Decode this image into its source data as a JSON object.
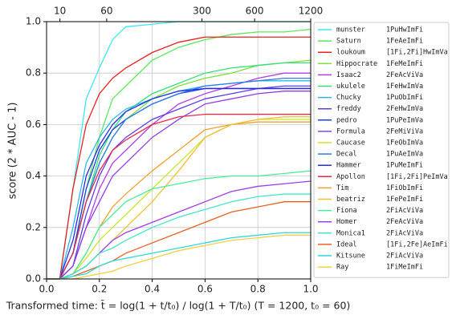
{
  "chart_data": {
    "type": "line",
    "xlabel": "Transformed time: t̃ = log(1 + t/t₀) / log(1 + T/t₀)   (T = 1200,  t₀ = 60)",
    "ylabel": "score (2 * AUC - 1)",
    "xlim": [
      0,
      1
    ],
    "ylim": [
      0,
      1
    ],
    "xticks": [
      {
        "value": 0,
        "label": "0.0"
      },
      {
        "value": 0.2,
        "label": "0.2"
      },
      {
        "value": 0.4,
        "label": "0.4"
      },
      {
        "value": 0.6,
        "label": "0.6"
      },
      {
        "value": 0.8,
        "label": "0.8"
      },
      {
        "value": 1,
        "label": "1.0"
      }
    ],
    "yticks": [
      {
        "value": 0,
        "label": "0.0"
      },
      {
        "value": 0.2,
        "label": "0.2"
      },
      {
        "value": 0.4,
        "label": "0.4"
      },
      {
        "value": 0.6,
        "label": "0.6"
      },
      {
        "value": 0.8,
        "label": "0.8"
      },
      {
        "value": 1,
        "label": "1.0"
      }
    ],
    "x2ticks": [
      {
        "value": 0.0506,
        "label": "10"
      },
      {
        "value": 0.2276,
        "label": "60"
      },
      {
        "value": 0.5884,
        "label": "300"
      },
      {
        "value": 0.7876,
        "label": "600"
      },
      {
        "value": 1,
        "label": "1200"
      }
    ],
    "grid": true,
    "x": [
      0,
      0.05,
      0.1,
      0.15,
      0.2,
      0.25,
      0.3,
      0.4,
      0.5,
      0.6,
      0.7,
      0.8,
      0.9,
      1.0
    ],
    "series": [
      {
        "name": "munster",
        "code": "1PuHwImFi",
        "color": "#3de8f0",
        "values": [
          0,
          0,
          0.35,
          0.7,
          0.82,
          0.93,
          0.98,
          0.99,
          1.0,
          1.0,
          1.0,
          1.0,
          1.0,
          1.0
        ]
      },
      {
        "name": "Saturn",
        "code": "1FeAeImFi",
        "color": "#5ce65c",
        "values": [
          0,
          0,
          0.1,
          0.35,
          0.55,
          0.7,
          0.75,
          0.85,
          0.9,
          0.93,
          0.95,
          0.96,
          0.96,
          0.97
        ]
      },
      {
        "name": "loukoum",
        "code": "[1Fi,2Fi]HwImVa",
        "color": "#e8211f",
        "values": [
          0,
          0,
          0.35,
          0.6,
          0.72,
          0.78,
          0.82,
          0.88,
          0.92,
          0.94,
          0.94,
          0.94,
          0.94,
          0.94
        ]
      },
      {
        "name": "Hippocrate",
        "code": "1FeMeImFi",
        "color": "#7ee03b",
        "values": [
          0,
          0,
          0.1,
          0.3,
          0.45,
          0.55,
          0.62,
          0.7,
          0.75,
          0.78,
          0.8,
          0.83,
          0.84,
          0.85
        ]
      },
      {
        "name": "Isaac2",
        "code": "2FeAcViVa",
        "color": "#b33ee6",
        "values": [
          0,
          0,
          0.05,
          0.2,
          0.35,
          0.45,
          0.5,
          0.6,
          0.68,
          0.72,
          0.75,
          0.78,
          0.8,
          0.8
        ]
      },
      {
        "name": "ukulele",
        "code": "1FeHwImVa",
        "color": "#34e07a",
        "values": [
          0,
          0,
          0.1,
          0.3,
          0.48,
          0.58,
          0.65,
          0.72,
          0.76,
          0.8,
          0.82,
          0.83,
          0.84,
          0.84
        ]
      },
      {
        "name": "Chucky",
        "code": "1PuObImFi",
        "color": "#2ab8e8",
        "values": [
          0,
          0,
          0.2,
          0.45,
          0.55,
          0.62,
          0.66,
          0.7,
          0.73,
          0.75,
          0.76,
          0.77,
          0.77,
          0.77
        ]
      },
      {
        "name": "freddy",
        "code": "2FeHwImVa",
        "color": "#5b3ee6",
        "values": [
          0,
          0,
          0.05,
          0.25,
          0.4,
          0.5,
          0.55,
          0.62,
          0.66,
          0.7,
          0.72,
          0.74,
          0.75,
          0.75
        ]
      },
      {
        "name": "pedro",
        "code": "1PuPeImVa",
        "color": "#1f3de8",
        "values": [
          0,
          0,
          0.1,
          0.35,
          0.5,
          0.58,
          0.62,
          0.68,
          0.72,
          0.74,
          0.74,
          0.74,
          0.74,
          0.74
        ]
      },
      {
        "name": "Formula",
        "code": "2FeMiViVa",
        "color": "#8f3ee6",
        "values": [
          0,
          0,
          0.05,
          0.2,
          0.3,
          0.4,
          0.45,
          0.55,
          0.62,
          0.68,
          0.7,
          0.72,
          0.73,
          0.73
        ]
      },
      {
        "name": "Caucase",
        "code": "1FeObImVa",
        "color": "#c8e62e",
        "values": [
          0,
          0,
          0.02,
          0.08,
          0.15,
          0.2,
          0.25,
          0.35,
          0.45,
          0.55,
          0.6,
          0.62,
          0.62,
          0.62
        ]
      },
      {
        "name": "Decal",
        "code": "1PuAeImVa",
        "color": "#2f7de8",
        "values": [
          0,
          0,
          0.1,
          0.3,
          0.45,
          0.55,
          0.62,
          0.68,
          0.72,
          0.75,
          0.76,
          0.77,
          0.78,
          0.78
        ]
      },
      {
        "name": "Hammer",
        "code": "1PuMeImFi",
        "color": "#2a2ae8",
        "values": [
          0,
          0,
          0.15,
          0.4,
          0.52,
          0.6,
          0.65,
          0.7,
          0.73,
          0.74,
          0.74,
          0.74,
          0.74,
          0.74
        ]
      },
      {
        "name": "Apollon",
        "code": "[1Fi,2Fi]PeImVa",
        "color": "#e82a4a",
        "values": [
          0,
          0,
          0.1,
          0.3,
          0.42,
          0.5,
          0.54,
          0.6,
          0.63,
          0.64,
          0.64,
          0.64,
          0.64,
          0.64
        ]
      },
      {
        "name": "Tim",
        "code": "1FiObImFi",
        "color": "#f0a030",
        "values": [
          0,
          0,
          0.02,
          0.1,
          0.2,
          0.28,
          0.33,
          0.42,
          0.5,
          0.58,
          0.6,
          0.61,
          0.61,
          0.61
        ]
      },
      {
        "name": "beatriz",
        "code": "1FePeImFi",
        "color": "#f0c030",
        "values": [
          0,
          0,
          0.02,
          0.05,
          0.1,
          0.15,
          0.2,
          0.3,
          0.42,
          0.55,
          0.6,
          0.62,
          0.63,
          0.63
        ]
      },
      {
        "name": "Fiona",
        "code": "2FiAcViVa",
        "color": "#4aee9a",
        "values": [
          0,
          0,
          0.02,
          0.1,
          0.2,
          0.25,
          0.3,
          0.35,
          0.37,
          0.39,
          0.4,
          0.4,
          0.41,
          0.42
        ]
      },
      {
        "name": "Homer",
        "code": "2FeAcViVa",
        "color": "#9a3ee8",
        "values": [
          0,
          0,
          0.02,
          0.05,
          0.1,
          0.15,
          0.18,
          0.22,
          0.26,
          0.3,
          0.34,
          0.36,
          0.37,
          0.38
        ]
      },
      {
        "name": "Monica1",
        "code": "2FiAcViVa",
        "color": "#40e8c8",
        "values": [
          0,
          0,
          0.02,
          0.05,
          0.1,
          0.12,
          0.15,
          0.2,
          0.24,
          0.27,
          0.3,
          0.32,
          0.33,
          0.33
        ]
      },
      {
        "name": "Ideal",
        "code": "[1Fi,2Fe]AeImFi",
        "color": "#e86020",
        "values": [
          0,
          0,
          0.01,
          0.03,
          0.05,
          0.07,
          0.1,
          0.14,
          0.18,
          0.22,
          0.26,
          0.28,
          0.3,
          0.3
        ]
      },
      {
        "name": "Kitsune",
        "code": "2FiAcViVa",
        "color": "#30d8d8",
        "values": [
          0,
          0,
          0.01,
          0.02,
          0.05,
          0.07,
          0.08,
          0.1,
          0.12,
          0.14,
          0.16,
          0.17,
          0.18,
          0.18
        ]
      },
      {
        "name": "Ray",
        "code": "1FiMeImFi",
        "color": "#f0d040",
        "values": [
          0,
          0,
          0,
          0.01,
          0.02,
          0.03,
          0.05,
          0.08,
          0.11,
          0.13,
          0.15,
          0.16,
          0.17,
          0.17
        ]
      }
    ]
  }
}
